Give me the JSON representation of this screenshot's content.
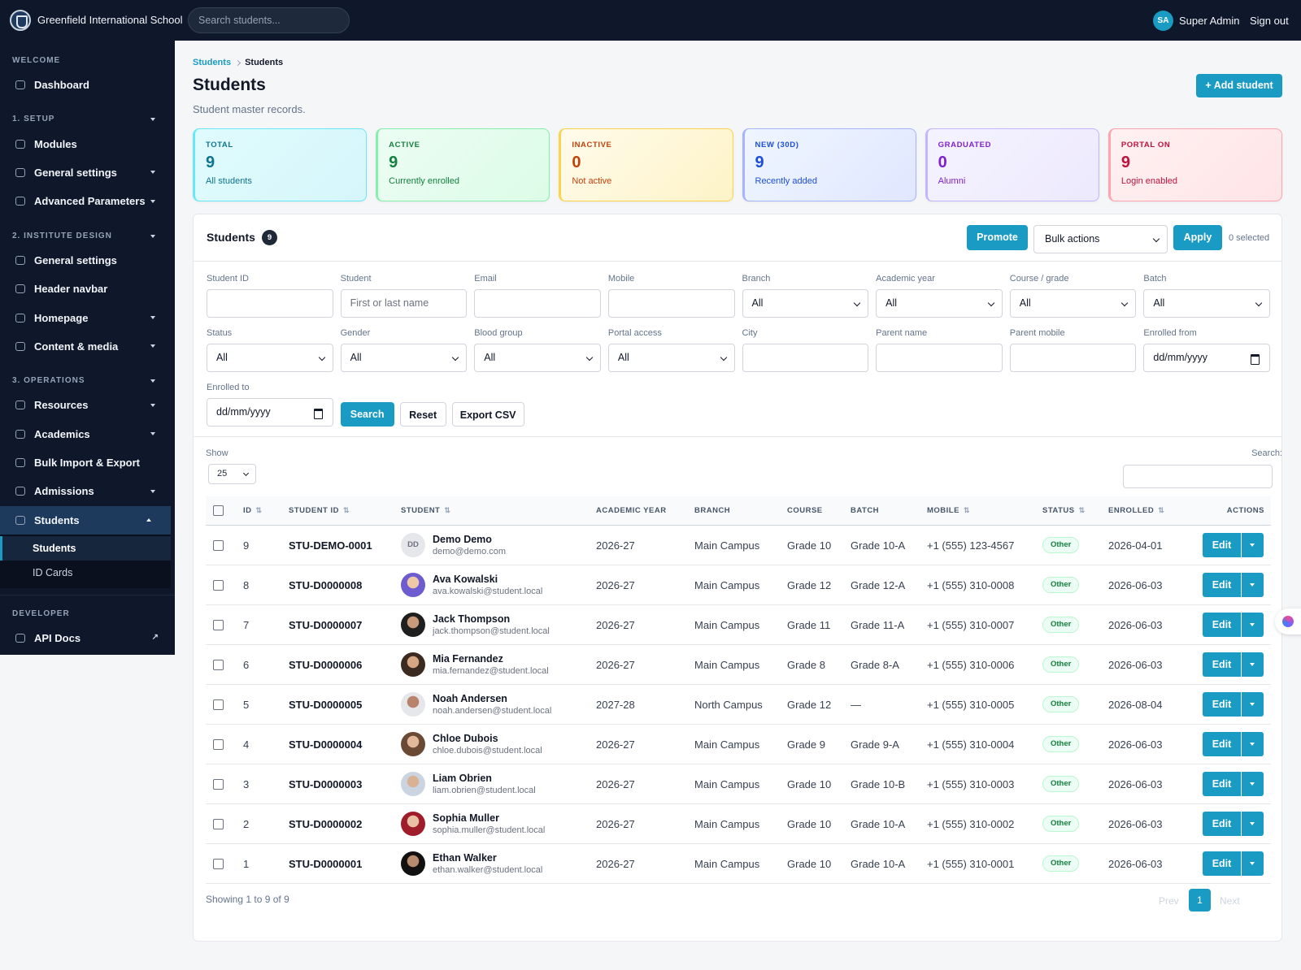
{
  "header": {
    "school_name": "Greenfield International School",
    "search_placeholder": "Search students...",
    "user_initials": "SA",
    "user_name": "Super Admin",
    "sign_out": "Sign out"
  },
  "sidebar": {
    "sections": [
      {
        "heading": "WELCOME",
        "items": [
          {
            "label": "Dashboard"
          }
        ]
      },
      {
        "heading": "1. SETUP",
        "expand": true,
        "items": [
          {
            "label": "Modules"
          },
          {
            "label": "General settings",
            "expand": true
          },
          {
            "label": "Advanced Parameters",
            "expand": true
          }
        ]
      },
      {
        "heading": "2. INSTITUTE DESIGN",
        "expand": true,
        "items": [
          {
            "label": "General settings"
          },
          {
            "label": "Header navbar"
          },
          {
            "label": "Homepage",
            "expand": true
          },
          {
            "label": "Content & media",
            "expand": true
          }
        ]
      },
      {
        "heading": "3. OPERATIONS",
        "expand": true,
        "items": [
          {
            "label": "Resources",
            "expand": true
          },
          {
            "label": "Academics",
            "expand": true
          },
          {
            "label": "Bulk Import & Export"
          },
          {
            "label": "Admissions",
            "expand": true
          },
          {
            "label": "Students",
            "active": true,
            "open": true,
            "children": [
              {
                "label": "Students",
                "active": true
              },
              {
                "label": "ID Cards"
              }
            ]
          }
        ]
      },
      {
        "heading": "DEVELOPER",
        "items": [
          {
            "label": "API Docs",
            "external": true
          }
        ]
      }
    ]
  },
  "breadcrumb": [
    "Students",
    "Students"
  ],
  "title": "Students",
  "subtitle": "Student master records.",
  "add_button": "+ Add student",
  "stats": [
    {
      "label": "TOTAL",
      "value": 9,
      "note": "All students"
    },
    {
      "label": "ACTIVE",
      "value": 9,
      "note": "Currently enrolled"
    },
    {
      "label": "INACTIVE",
      "value": 0,
      "note": "Not active"
    },
    {
      "label": "NEW (30D)",
      "value": 9,
      "note": "Recently added"
    },
    {
      "label": "GRADUATED",
      "value": 0,
      "note": "Alumni"
    },
    {
      "label": "PORTAL ON",
      "value": 9,
      "note": "Login enabled"
    }
  ],
  "panel": {
    "title": "Students",
    "count": 9,
    "promote": "Promote",
    "bulk_actions": "Bulk actions",
    "apply": "Apply",
    "selected": "0 selected"
  },
  "filters": [
    {
      "label": "Student ID",
      "kind": "input"
    },
    {
      "label": "Student",
      "kind": "input",
      "placeholder": "First or last name"
    },
    {
      "label": "Email",
      "kind": "input"
    },
    {
      "label": "Mobile",
      "kind": "input"
    },
    {
      "label": "Branch",
      "kind": "select",
      "value": "All"
    },
    {
      "label": "Academic year",
      "kind": "select",
      "value": "All"
    },
    {
      "label": "Course / grade",
      "kind": "select",
      "value": "All"
    },
    {
      "label": "Batch",
      "kind": "select",
      "value": "All"
    },
    {
      "label": "Status",
      "kind": "select",
      "value": "All"
    },
    {
      "label": "Gender",
      "kind": "select",
      "value": "All"
    },
    {
      "label": "Blood group",
      "kind": "select",
      "value": "All"
    },
    {
      "label": "Portal access",
      "kind": "select",
      "value": "All"
    },
    {
      "label": "City",
      "kind": "input"
    },
    {
      "label": "Parent name",
      "kind": "input"
    },
    {
      "label": "Parent mobile",
      "kind": "input"
    },
    {
      "label": "Enrolled from",
      "kind": "date",
      "value": "dd/mm/yyyy"
    },
    {
      "label": "Enrolled to",
      "kind": "date",
      "value": "dd/mm/yyyy"
    }
  ],
  "filter_buttons": {
    "search": "Search",
    "reset": "Reset",
    "export": "Export CSV"
  },
  "table": {
    "show_label": "Show",
    "page_size": 25,
    "search_label": "Search:",
    "edit_label": "Edit",
    "columns": [
      {
        "label": "ID",
        "sortable": true
      },
      {
        "label": "STUDENT ID",
        "sortable": true
      },
      {
        "label": "STUDENT",
        "sortable": true
      },
      {
        "label": "ACADEMIC YEAR"
      },
      {
        "label": "BRANCH"
      },
      {
        "label": "COURSE"
      },
      {
        "label": "BATCH"
      },
      {
        "label": "MOBILE",
        "sortable": true
      },
      {
        "label": "STATUS",
        "sortable": true
      },
      {
        "label": "ENROLLED",
        "sortable": true
      },
      {
        "label": "ACTIONS"
      }
    ],
    "rows": [
      {
        "id": 9,
        "student_id": "STU-DEMO-0001",
        "initials": "DD",
        "name": "Demo Demo",
        "email": "demo@demo.com",
        "year": "2026-27",
        "branch": "Main Campus",
        "course": "Grade 10",
        "batch": "Grade 10-A",
        "mobile": "+1 (555) 123-4567",
        "status": "Other",
        "enrolled": "2026-04-01"
      },
      {
        "id": 8,
        "student_id": "STU-D0000008",
        "name": "Ava Kowalski",
        "email": "ava.kowalski@student.local",
        "year": "2026-27",
        "branch": "Main Campus",
        "course": "Grade 12",
        "batch": "Grade 12-A",
        "mobile": "+1 (555) 310-0008",
        "status": "Other",
        "enrolled": "2026-06-03"
      },
      {
        "id": 7,
        "student_id": "STU-D0000007",
        "name": "Jack Thompson",
        "email": "jack.thompson@student.local",
        "year": "2026-27",
        "branch": "Main Campus",
        "course": "Grade 11",
        "batch": "Grade 11-A",
        "mobile": "+1 (555) 310-0007",
        "status": "Other",
        "enrolled": "2026-06-03"
      },
      {
        "id": 6,
        "student_id": "STU-D0000006",
        "name": "Mia Fernandez",
        "email": "mia.fernandez@student.local",
        "year": "2026-27",
        "branch": "Main Campus",
        "course": "Grade 8",
        "batch": "Grade 8-A",
        "mobile": "+1 (555) 310-0006",
        "status": "Other",
        "enrolled": "2026-06-03"
      },
      {
        "id": 5,
        "student_id": "STU-D0000005",
        "name": "Noah Andersen",
        "email": "noah.andersen@student.local",
        "year": "2027-28",
        "branch": "North Campus",
        "course": "Grade 12",
        "batch": "—",
        "mobile": "+1 (555) 310-0005",
        "status": "Other",
        "enrolled": "2026-08-04"
      },
      {
        "id": 4,
        "student_id": "STU-D0000004",
        "name": "Chloe Dubois",
        "email": "chloe.dubois@student.local",
        "year": "2026-27",
        "branch": "Main Campus",
        "course": "Grade 9",
        "batch": "Grade 9-A",
        "mobile": "+1 (555) 310-0004",
        "status": "Other",
        "enrolled": "2026-06-03"
      },
      {
        "id": 3,
        "student_id": "STU-D0000003",
        "name": "Liam Obrien",
        "email": "liam.obrien@student.local",
        "year": "2026-27",
        "branch": "Main Campus",
        "course": "Grade 10",
        "batch": "Grade 10-B",
        "mobile": "+1 (555) 310-0003",
        "status": "Other",
        "enrolled": "2026-06-03"
      },
      {
        "id": 2,
        "student_id": "STU-D0000002",
        "name": "Sophia Muller",
        "email": "sophia.muller@student.local",
        "year": "2026-27",
        "branch": "Main Campus",
        "course": "Grade 10",
        "batch": "Grade 10-A",
        "mobile": "+1 (555) 310-0002",
        "status": "Other",
        "enrolled": "2026-06-03"
      },
      {
        "id": 1,
        "student_id": "STU-D0000001",
        "name": "Ethan Walker",
        "email": "ethan.walker@student.local",
        "year": "2026-27",
        "branch": "Main Campus",
        "course": "Grade 10",
        "batch": "Grade 10-A",
        "mobile": "+1 (555) 310-0001",
        "status": "Other",
        "enrolled": "2026-06-03"
      }
    ]
  },
  "pagination": {
    "summary": "Showing 1 to 9 of 9",
    "prev": "Prev",
    "page": 1,
    "next": "Next"
  }
}
